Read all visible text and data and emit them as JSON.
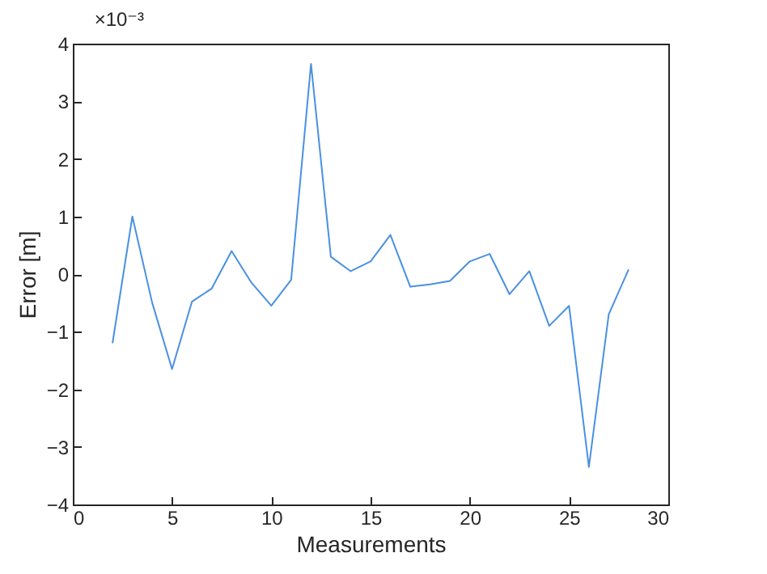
{
  "chart_data": {
    "type": "line",
    "xlabel": "Measurements",
    "ylabel": "Error [m]",
    "annotations": [
      "×10⁻³"
    ],
    "x": [
      2,
      3,
      4,
      5,
      6,
      7,
      8,
      9,
      10,
      11,
      12,
      13,
      14,
      15,
      16,
      17,
      18,
      19,
      20,
      21,
      22,
      23,
      24,
      25,
      26,
      27,
      28
    ],
    "series": [
      {
        "color": "#4a90e2",
        "values": [
          -1.2,
          1.0,
          -0.5,
          -1.65,
          -0.48,
          -0.25,
          0.4,
          -0.15,
          -0.55,
          -0.1,
          3.65,
          0.3,
          0.05,
          0.22,
          0.68,
          -0.22,
          -0.18,
          -0.12,
          0.22,
          0.35,
          -0.35,
          0.05,
          -0.9,
          -0.55,
          -3.35,
          -0.7,
          0.08
        ]
      }
    ],
    "xlim": [
      0,
      30
    ],
    "xticks": [
      0,
      5,
      10,
      15,
      20,
      25,
      30
    ],
    "ylim": [
      -4,
      4
    ],
    "yticks": [
      -4,
      -3,
      -2,
      -1,
      0,
      1,
      2,
      3,
      4
    ],
    "grid": false
  }
}
